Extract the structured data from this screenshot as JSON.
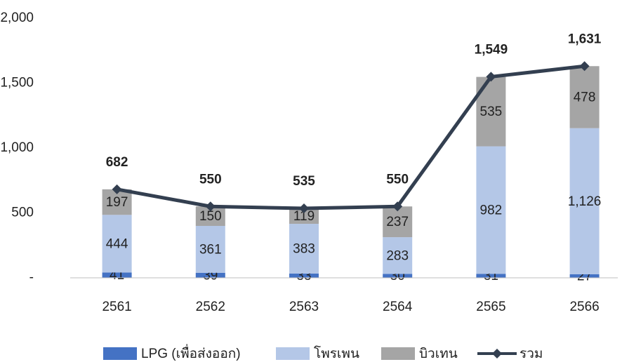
{
  "chart_data": {
    "type": "bar",
    "stacked": true,
    "categories": [
      "2561",
      "2562",
      "2563",
      "2564",
      "2565",
      "2566"
    ],
    "series": [
      {
        "name": "LPG (เพื่อส่งออก)",
        "color": "#4472c4",
        "values": [
          41,
          39,
          33,
          30,
          31,
          27
        ]
      },
      {
        "name": "โพรเพน",
        "color": "#b4c7e7",
        "values": [
          444,
          361,
          383,
          283,
          982,
          1126
        ],
        "value_labels": [
          "444",
          "361",
          "383",
          "283",
          "982",
          "1,126"
        ]
      },
      {
        "name": "บิวเทน",
        "color": "#a5a5a5",
        "values": [
          197,
          150,
          119,
          237,
          535,
          478
        ]
      },
      {
        "name": "รวม",
        "type": "line",
        "color": "#333f50",
        "values": [
          682,
          550,
          535,
          550,
          1549,
          1631
        ],
        "value_labels": [
          "682",
          "550",
          "535",
          "550",
          "1,549",
          "1,631"
        ]
      }
    ],
    "ylim": [
      0,
      2000
    ],
    "yticks": [
      {
        "value": 0,
        "label": "-"
      },
      500,
      {
        "value": 1000,
        "label": "1,000"
      },
      {
        "value": 1500,
        "label": "1,500"
      },
      {
        "value": 2000,
        "label": "2,000"
      }
    ],
    "grid": false,
    "legend": "bottom"
  }
}
